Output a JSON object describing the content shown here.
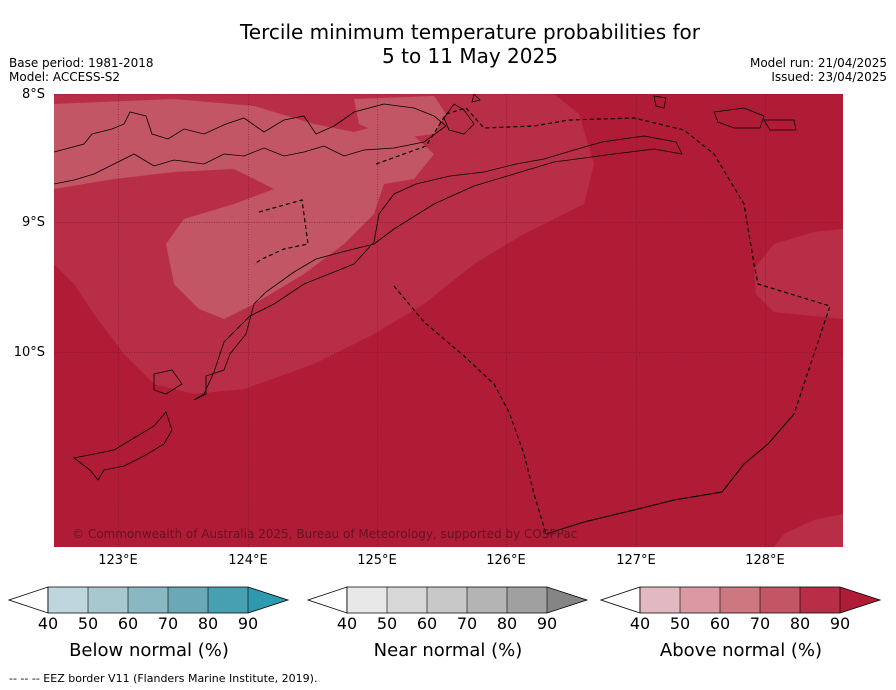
{
  "title_line1": "Tercile minimum temperature probabilities for",
  "title_line2": "5 to 11 May 2025",
  "meta_left": {
    "base_period": "Base period: 1981-2018",
    "model": "Model: ACCESS-S2"
  },
  "meta_right": {
    "model_run": "Model run: 21/04/2025",
    "issued": "Issued: 23/04/2025"
  },
  "lat_labels": [
    "8°S",
    "9°S",
    "10°S"
  ],
  "lon_labels": [
    "123°E",
    "124°E",
    "125°E",
    "126°E",
    "127°E",
    "128°E"
  ],
  "credit": "© Commonwealth of Australia 2025, Bureau of Meteorology, supported by COSPPac",
  "colorbars": [
    {
      "label": "Below normal (%)",
      "ticks": [
        "40",
        "50",
        "60",
        "70",
        "80",
        "90"
      ],
      "colors": [
        "#ffffff",
        "#bfd6dc",
        "#a7c8cf",
        "#8ab8c2",
        "#6aa8b6",
        "#46a0b2",
        "#2f9aaf"
      ]
    },
    {
      "label": "Near normal (%)",
      "ticks": [
        "40",
        "50",
        "60",
        "70",
        "80",
        "90"
      ],
      "colors": [
        "#ffffff",
        "#e8e8e8",
        "#d8d8d8",
        "#c8c8c8",
        "#b4b4b4",
        "#a0a0a0",
        "#858585"
      ]
    },
    {
      "label": "Above normal (%)",
      "ticks": [
        "40",
        "50",
        "60",
        "70",
        "80",
        "90"
      ],
      "colors": [
        "#ffffff",
        "#e3b9c1",
        "#da99a3",
        "#cd7880",
        "#c35664",
        "#b92e47",
        "#b01c36"
      ]
    }
  ],
  "map_colors": {
    "ocean_90": "#b01c36",
    "band_80": "#b92e47",
    "band_70": "#c35664"
  },
  "footer": "--  --  -- EEZ border V11 (Flanders Marine Institute, 2019)."
}
